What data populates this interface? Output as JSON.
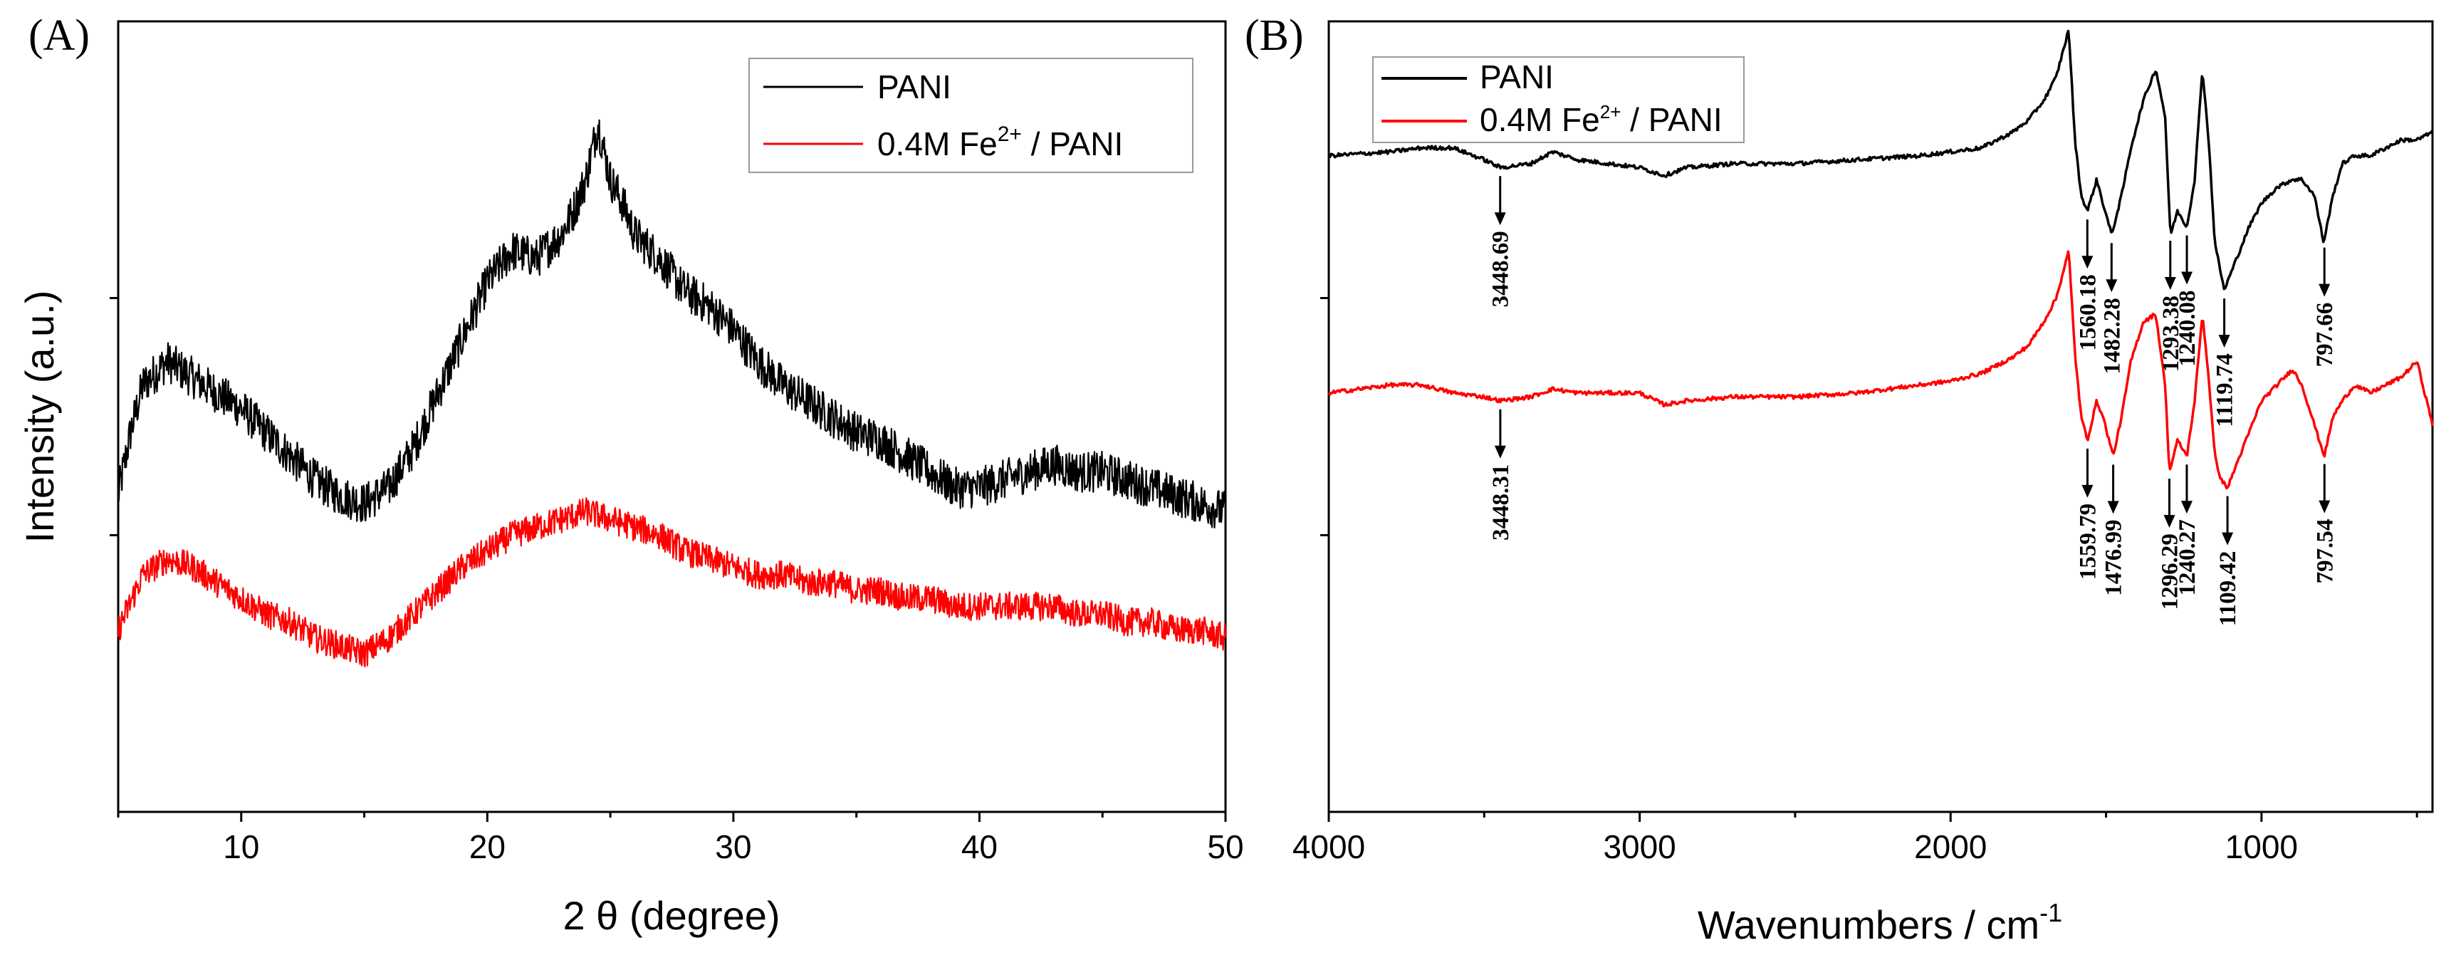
{
  "chart_data": [
    {
      "panel_label": "(A)",
      "type": "line",
      "title": "",
      "xlabel": "2 θ (degree)",
      "ylabel": "Intensity (a.u.)",
      "xlim": [
        5,
        50
      ],
      "ylim": [
        0,
        100
      ],
      "xticks": [
        10,
        20,
        30,
        40,
        50
      ],
      "xtick_labels": [
        "10",
        "20",
        "30",
        "40",
        "50"
      ],
      "y_tick_labels_shown": false,
      "legend_position": "top-right",
      "series": [
        {
          "name": "PANI",
          "color": "#000000",
          "x": [
            5.0,
            5.5,
            6.0,
            7.0,
            8.0,
            9.0,
            10.0,
            11.0,
            12.0,
            13.0,
            14.0,
            15.0,
            16.0,
            17.0,
            18.0,
            19.0,
            20.0,
            21.0,
            22.0,
            23.0,
            23.5,
            24.0,
            24.5,
            25.0,
            25.5,
            26.0,
            27.0,
            28.0,
            29.0,
            30.0,
            31.0,
            32.0,
            33.0,
            34.0,
            35.0,
            36.0,
            37.0,
            38.0,
            39.0,
            40.0,
            41.0,
            42.0,
            43.0,
            44.0,
            45.0,
            46.0,
            47.0,
            48.0,
            49.0,
            50.0
          ],
          "y": [
            40,
            48,
            54,
            57,
            55,
            53,
            51,
            48,
            45,
            42,
            40,
            39,
            41,
            46,
            53,
            60,
            67,
            71,
            70,
            73,
            76,
            80,
            87,
            80,
            77,
            73,
            70,
            66,
            64,
            61,
            57,
            54,
            52,
            50,
            48,
            47,
            45,
            43,
            41,
            41,
            42,
            43,
            44,
            43,
            43,
            42,
            41,
            40,
            39,
            38
          ]
        },
        {
          "name": "0.4M Fe2+ / PANI",
          "color": "#ff0000",
          "x": [
            5.0,
            6.0,
            7.0,
            8.0,
            9.0,
            10.0,
            11.0,
            12.0,
            13.0,
            14.0,
            15.0,
            16.0,
            17.0,
            18.0,
            19.0,
            20.0,
            21.0,
            22.0,
            23.0,
            24.0,
            25.0,
            26.0,
            27.0,
            28.0,
            29.0,
            30.0,
            31.0,
            32.0,
            33.0,
            34.0,
            35.0,
            36.0,
            37.0,
            38.0,
            39.0,
            40.0,
            41.0,
            42.0,
            43.0,
            44.0,
            45.0,
            46.0,
            47.0,
            48.0,
            49.0,
            50.0
          ],
          "y": [
            23,
            30,
            32,
            31,
            29,
            27,
            25,
            24,
            22,
            21,
            20,
            22,
            25,
            28,
            31,
            33,
            35,
            36,
            37,
            38,
            37,
            36,
            35,
            33,
            32,
            31,
            30,
            30,
            29,
            29,
            28,
            28,
            27,
            27,
            26,
            26,
            26,
            26,
            26,
            25,
            25,
            24,
            24,
            23,
            23,
            22
          ]
        }
      ],
      "legend": {
        "entries": [
          {
            "label_main": "PANI",
            "label_sup": "",
            "label_tail": ""
          },
          {
            "label_main": "0.4M Fe",
            "label_sup": "2+",
            "label_tail": " / PANI"
          }
        ]
      }
    },
    {
      "panel_label": "(B)",
      "type": "line",
      "title": "",
      "xlabel": "Wavenumbers / cm",
      "xlabel_sup": "-1",
      "ylabel": "",
      "xlim": [
        4000,
        450
      ],
      "x_reversed": true,
      "ylim": [
        0,
        100
      ],
      "xticks": [
        4000,
        3000,
        2000,
        1000
      ],
      "xtick_labels": [
        "4000",
        "3000",
        "2000",
        "1000"
      ],
      "y_tick_labels_shown": false,
      "legend_position": "top-left",
      "series": [
        {
          "name": "PANI",
          "color": "#000000",
          "x": [
            4000,
            3800,
            3700,
            3600,
            3500,
            3448,
            3350,
            3280,
            3200,
            3100,
            3000,
            2920,
            2850,
            2700,
            2500,
            2300,
            2100,
            2000,
            1900,
            1800,
            1750,
            1700,
            1660,
            1640,
            1620,
            1600,
            1580,
            1560,
            1530,
            1510,
            1482,
            1450,
            1420,
            1380,
            1340,
            1310,
            1293,
            1270,
            1240,
            1215,
            1190,
            1170,
            1150,
            1130,
            1120,
            1080,
            1040,
            1000,
            950,
            900,
            870,
            830,
            800,
            770,
            740,
            700,
            650,
            600,
            550,
            500,
            450
          ],
          "y": [
            83,
            83.5,
            84,
            84,
            82.5,
            81.5,
            82,
            83.5,
            82.5,
            82,
            81.5,
            80.5,
            81.5,
            82,
            82,
            82.5,
            83,
            83.5,
            84,
            86,
            87.5,
            90,
            93,
            96,
            99,
            85,
            78,
            76,
            80,
            77,
            73,
            78,
            84,
            90,
            94,
            88,
            73,
            76,
            74,
            80,
            94,
            85,
            72,
            68,
            66,
            70,
            74,
            77,
            79,
            80,
            80,
            78,
            72,
            78,
            82,
            83,
            83,
            84,
            85,
            85,
            86
          ]
        },
        {
          "name": "0.4M Fe2+ / PANI",
          "color": "#ff0000",
          "x": [
            4000,
            3800,
            3700,
            3600,
            3500,
            3448,
            3350,
            3280,
            3200,
            3100,
            3000,
            2920,
            2850,
            2700,
            2500,
            2300,
            2100,
            2000,
            1900,
            1800,
            1750,
            1700,
            1660,
            1640,
            1620,
            1600,
            1580,
            1560,
            1530,
            1510,
            1477,
            1450,
            1420,
            1380,
            1340,
            1310,
            1296,
            1270,
            1240,
            1215,
            1190,
            1170,
            1150,
            1130,
            1109,
            1080,
            1040,
            1000,
            950,
            900,
            870,
            830,
            798,
            770,
            740,
            700,
            650,
            600,
            550,
            500,
            450
          ],
          "y": [
            53,
            54,
            54,
            53,
            52.5,
            52,
            52.5,
            53.5,
            53,
            53,
            53,
            51.5,
            52,
            52.5,
            52.5,
            53,
            54,
            54.5,
            55.5,
            57.5,
            59,
            62,
            65,
            68,
            71,
            58,
            50,
            47,
            52,
            50,
            45,
            50,
            57,
            62,
            63,
            54,
            43,
            47,
            45,
            52,
            63,
            55,
            45,
            42,
            41,
            44,
            48,
            52,
            54,
            56,
            54,
            49,
            45,
            50,
            52,
            54,
            53,
            54,
            55,
            57,
            49
          ]
        }
      ],
      "legend": {
        "entries": [
          {
            "label_main": "PANI",
            "label_sup": "",
            "label_tail": ""
          },
          {
            "label_main": "0.4M Fe",
            "label_sup": "2+",
            "label_tail": " / PANI"
          }
        ]
      },
      "annotations": [
        {
          "series": 0,
          "x": 3448.69,
          "text": "3448.69"
        },
        {
          "series": 0,
          "x": 1560.18,
          "text": "1560.18"
        },
        {
          "series": 0,
          "x": 1482.28,
          "text": "1482.28"
        },
        {
          "series": 0,
          "x": 1293.38,
          "text": "1293.38"
        },
        {
          "series": 0,
          "x": 1240.08,
          "text": "1240.08"
        },
        {
          "series": 0,
          "x": 1119.74,
          "text": "1119.74"
        },
        {
          "series": 0,
          "x": 797.66,
          "text": "797.66"
        },
        {
          "series": 1,
          "x": 3448.31,
          "text": "3448.31"
        },
        {
          "series": 1,
          "x": 1559.79,
          "text": "1559.79"
        },
        {
          "series": 1,
          "x": 1476.99,
          "text": "1476.99"
        },
        {
          "series": 1,
          "x": 1296.29,
          "text": "1296.29"
        },
        {
          "series": 1,
          "x": 1240.27,
          "text": "1240.27"
        },
        {
          "series": 1,
          "x": 1109.42,
          "text": "1109.42"
        },
        {
          "series": 1,
          "x": 797.54,
          "text": "797.54"
        }
      ]
    }
  ]
}
